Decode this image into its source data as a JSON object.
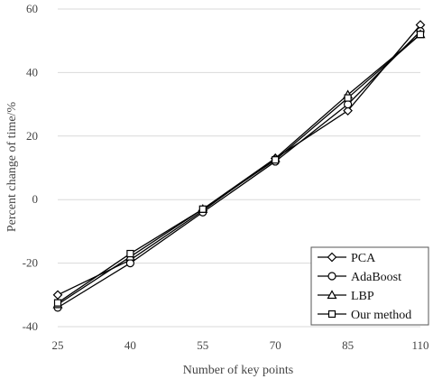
{
  "chart_data": {
    "type": "line",
    "title": "",
    "xlabel": "Number of key points",
    "ylabel": "Percent change of time/%",
    "categories": [
      "25",
      "40",
      "55",
      "70",
      "85",
      "110"
    ],
    "ylim": [
      -40,
      60
    ],
    "yticks": [
      "-40",
      "-20",
      "0",
      "20",
      "40",
      "60"
    ],
    "grid": "horizontal",
    "legend_position": "bottom-right",
    "line_color": "#000000",
    "series": [
      {
        "name": "PCA",
        "marker": "diamond",
        "values": [
          -30,
          -19,
          -3.5,
          13,
          28,
          55
        ]
      },
      {
        "name": "AdaBoost",
        "marker": "circle",
        "values": [
          -34,
          -20,
          -4,
          12,
          30,
          53
        ]
      },
      {
        "name": "LBP",
        "marker": "triangle",
        "values": [
          -33,
          -18,
          -3,
          13,
          33,
          52
        ]
      },
      {
        "name": "Our method",
        "marker": "square",
        "values": [
          -32.5,
          -17,
          -3,
          12.5,
          32,
          52
        ]
      }
    ]
  }
}
